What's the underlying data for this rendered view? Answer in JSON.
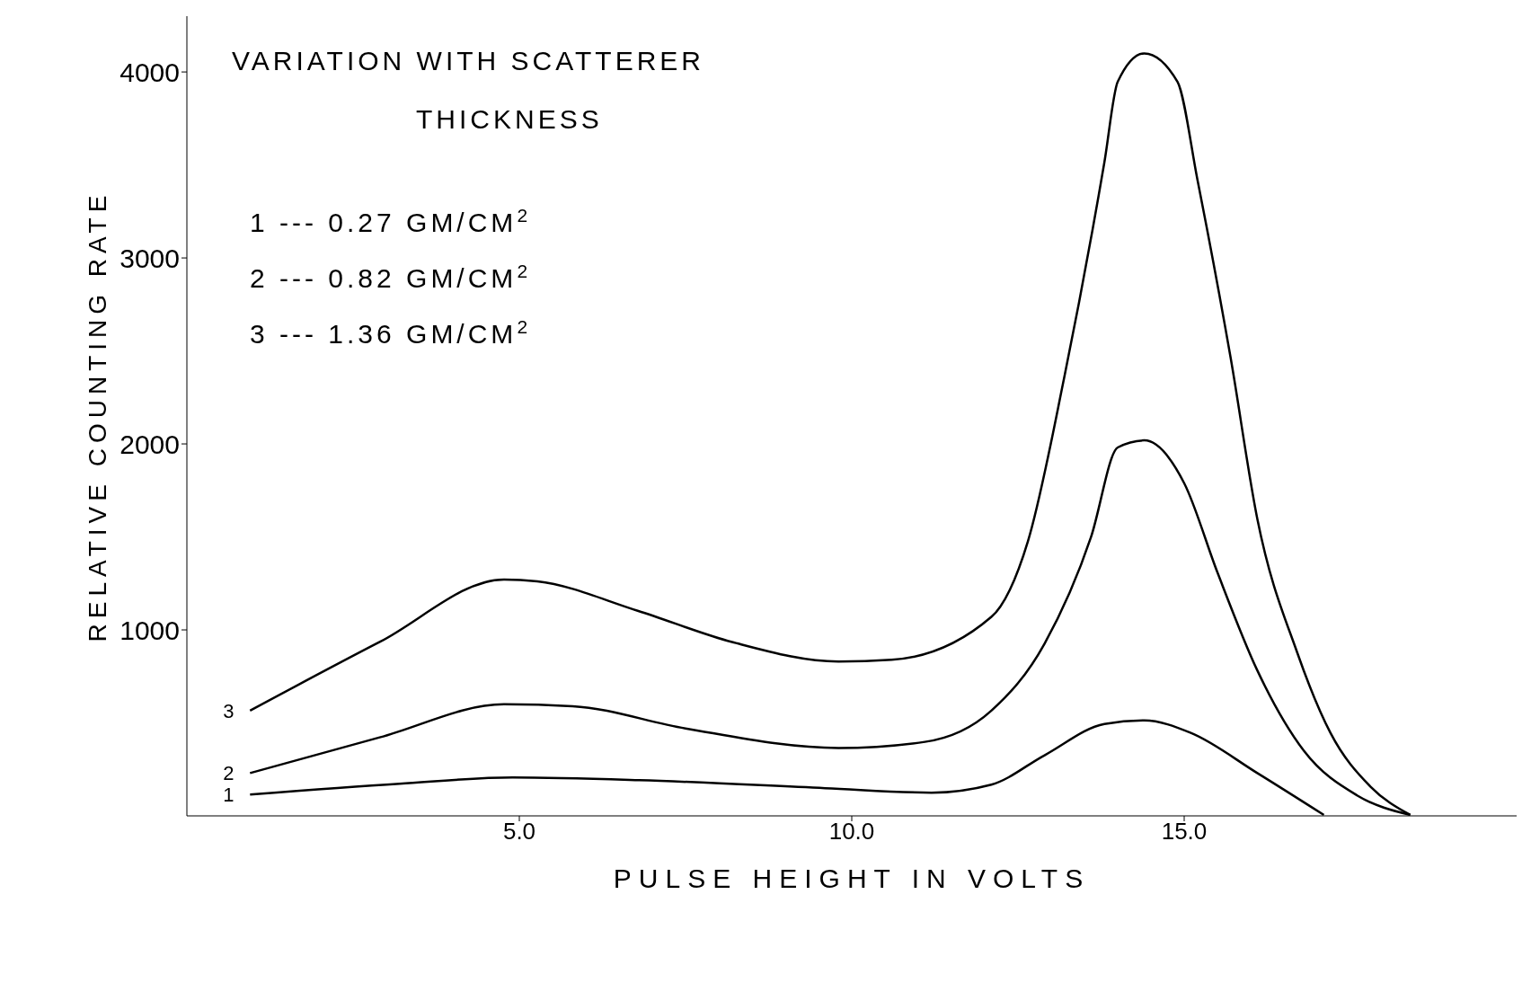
{
  "chart_data": {
    "type": "line",
    "title": "VARIATION WITH SCATTERER THICKNESS",
    "xlabel": "PULSE HEIGHT IN VOLTS",
    "ylabel": "RELATIVE COUNTING RATE",
    "annotations": [
      "1 --- 0.27 GM/CM$^{2}$",
      "2 --- 0.82 GM/CM$^{2}$",
      "3 --- 1.36 GM/CM$^{2}$"
    ],
    "xlim": [
      0,
      20
    ],
    "xticks": [
      {
        "value": 5,
        "label": "5.0"
      },
      {
        "value": 10,
        "label": "10.0"
      },
      {
        "value": 15,
        "label": "15.0"
      }
    ],
    "ylim": [
      0,
      4300
    ],
    "yticks": [
      1000,
      2000,
      3000,
      4000
    ],
    "marker": "none",
    "line_style": "solid",
    "series": [
      {
        "name": "1",
        "color": "#000000",
        "x": [
          0.95,
          3.2,
          4.9,
          6.8,
          9.6,
          11.2,
          12.1,
          12.9,
          13.8,
          14.4,
          15.1,
          16.1,
          17.1
        ],
        "values": [
          115,
          173,
          206,
          192,
          149,
          125,
          168,
          326,
          494,
          513,
          446,
          230,
          5
        ]
      },
      {
        "name": "2",
        "color": "#000000",
        "x": [
          0.95,
          2.9,
          4.77,
          5.8,
          7.5,
          9.8,
          11.1,
          12.1,
          12.9,
          13.6,
          14.0,
          14.4,
          15.0,
          15.5,
          16.1,
          16.8,
          17.6,
          18.4
        ],
        "values": [
          230,
          422,
          600,
          590,
          470,
          365,
          398,
          566,
          926,
          1501,
          1981,
          2019,
          1789,
          1309,
          782,
          350,
          110,
          5
        ]
      },
      {
        "name": "3",
        "color": "#000000",
        "x": [
          0.95,
          2.9,
          4.77,
          5.27,
          6.78,
          8.2,
          9.8,
          10.6,
          12.1,
          12.65,
          13.2,
          13.8,
          14.0,
          14.4,
          14.9,
          15.2,
          15.7,
          16.1,
          16.7,
          17.2,
          17.8,
          18.4
        ],
        "values": [
          566,
          935,
          1271,
          1261,
          1103,
          935,
          830,
          839,
          1070,
          1477,
          2365,
          3515,
          3947,
          4100,
          3947,
          3420,
          2460,
          1597,
          878,
          446,
          158,
          5
        ]
      }
    ]
  }
}
